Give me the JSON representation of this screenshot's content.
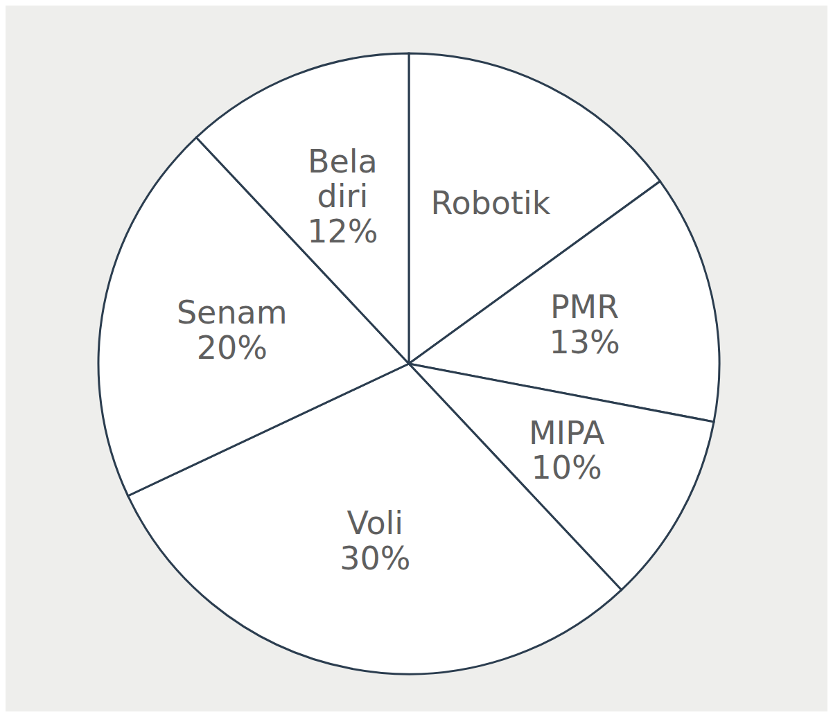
{
  "chart_data": {
    "type": "pie",
    "categories": [
      "Robotik",
      "PMR",
      "MIPA",
      "Voli",
      "Senam",
      "Bela diri"
    ],
    "values": [
      15,
      13,
      10,
      30,
      20,
      12
    ],
    "value_labels": [
      null,
      "13%",
      "10%",
      "30%",
      "20%",
      "12%"
    ],
    "colors": [
      "#ffffff",
      "#ffffff",
      "#ffffff",
      "#ffffff",
      "#ffffff",
      "#ffffff"
    ],
    "data_labels": true
  }
}
